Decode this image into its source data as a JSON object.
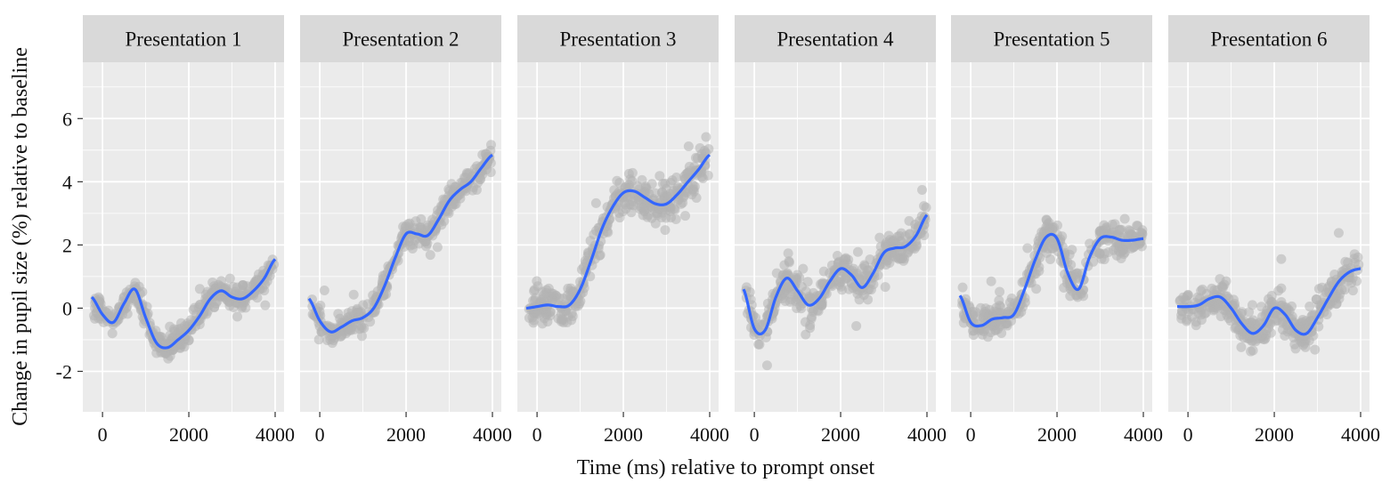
{
  "chart_data": {
    "type": "scatter",
    "xlabel": "Time (ms) relative to prompt onset",
    "ylabel": "Change in pupil size (%) relative to baseline",
    "xlim": [
      -250,
      4000
    ],
    "ylim": [
      -3,
      7.5
    ],
    "xticks": [
      0,
      2000,
      4000
    ],
    "xtick_labels": [
      "0",
      "2000",
      "4000"
    ],
    "yticks": [
      -2,
      0,
      2,
      4,
      6
    ],
    "ytick_labels": [
      "-2",
      "0",
      "2",
      "4",
      "6"
    ],
    "grid": true,
    "colors": {
      "panel_background": "#EBEBEB",
      "strip_background": "#D9D9D9",
      "points": "#B3B3B3",
      "smooth": "#3366FF",
      "grid": "#FFFFFF"
    },
    "panels": [
      {
        "title": "Presentation 1",
        "smooth": {
          "x": [
            -250,
            0,
            250,
            500,
            750,
            1000,
            1250,
            1500,
            1750,
            2000,
            2250,
            2500,
            2750,
            3000,
            3250,
            3500,
            3750,
            4000
          ],
          "y": [
            0.35,
            -0.2,
            -0.45,
            0.15,
            0.6,
            -0.3,
            -1.1,
            -1.25,
            -1.0,
            -0.7,
            -0.25,
            0.3,
            0.55,
            0.35,
            0.3,
            0.55,
            0.95,
            1.55
          ]
        },
        "spread": 0.35
      },
      {
        "title": "Presentation 2",
        "smooth": {
          "x": [
            -250,
            0,
            250,
            500,
            750,
            1000,
            1250,
            1500,
            1750,
            2000,
            2250,
            2500,
            2750,
            3000,
            3250,
            3500,
            3750,
            4000
          ],
          "y": [
            0.3,
            -0.4,
            -0.75,
            -0.6,
            -0.4,
            -0.3,
            0.0,
            0.7,
            1.6,
            2.35,
            2.35,
            2.3,
            2.8,
            3.4,
            3.75,
            4.0,
            4.45,
            4.85
          ]
        },
        "spread": 0.4
      },
      {
        "title": "Presentation 3",
        "smooth": {
          "x": [
            -250,
            0,
            250,
            500,
            750,
            1000,
            1250,
            1500,
            1750,
            2000,
            2250,
            2500,
            2750,
            3000,
            3250,
            3500,
            3750,
            4000
          ],
          "y": [
            0.0,
            0.05,
            0.1,
            0.05,
            0.1,
            0.6,
            1.5,
            2.5,
            3.2,
            3.65,
            3.7,
            3.5,
            3.3,
            3.3,
            3.6,
            4.0,
            4.4,
            4.85
          ]
        },
        "spread": 0.6
      },
      {
        "title": "Presentation 4",
        "smooth": {
          "x": [
            -250,
            0,
            250,
            500,
            750,
            1000,
            1250,
            1500,
            1750,
            2000,
            2250,
            2500,
            2750,
            3000,
            3250,
            3500,
            3750,
            4000
          ],
          "y": [
            0.6,
            -0.65,
            -0.7,
            0.35,
            0.95,
            0.55,
            0.1,
            0.3,
            0.85,
            1.25,
            1.05,
            0.65,
            1.1,
            1.75,
            1.9,
            1.95,
            2.3,
            2.95
          ]
        },
        "spread": 0.55
      },
      {
        "title": "Presentation 5",
        "smooth": {
          "x": [
            -250,
            0,
            250,
            500,
            750,
            1000,
            1250,
            1500,
            1750,
            2000,
            2250,
            2500,
            2750,
            3000,
            3250,
            3500,
            3750,
            4000
          ],
          "y": [
            0.4,
            -0.45,
            -0.55,
            -0.35,
            -0.3,
            -0.2,
            0.6,
            1.55,
            2.25,
            2.2,
            1.1,
            0.6,
            1.6,
            2.2,
            2.25,
            2.15,
            2.15,
            2.2
          ]
        },
        "spread": 0.55
      },
      {
        "title": "Presentation 6",
        "smooth": {
          "x": [
            -250,
            0,
            250,
            500,
            750,
            1000,
            1250,
            1500,
            1750,
            2000,
            2250,
            2500,
            2750,
            3000,
            3250,
            3500,
            3750,
            4000
          ],
          "y": [
            0.05,
            0.05,
            0.1,
            0.3,
            0.35,
            0.0,
            -0.5,
            -0.8,
            -0.55,
            0.0,
            -0.2,
            -0.7,
            -0.8,
            -0.3,
            0.3,
            0.85,
            1.15,
            1.25
          ]
        },
        "spread": 0.55
      }
    ]
  }
}
